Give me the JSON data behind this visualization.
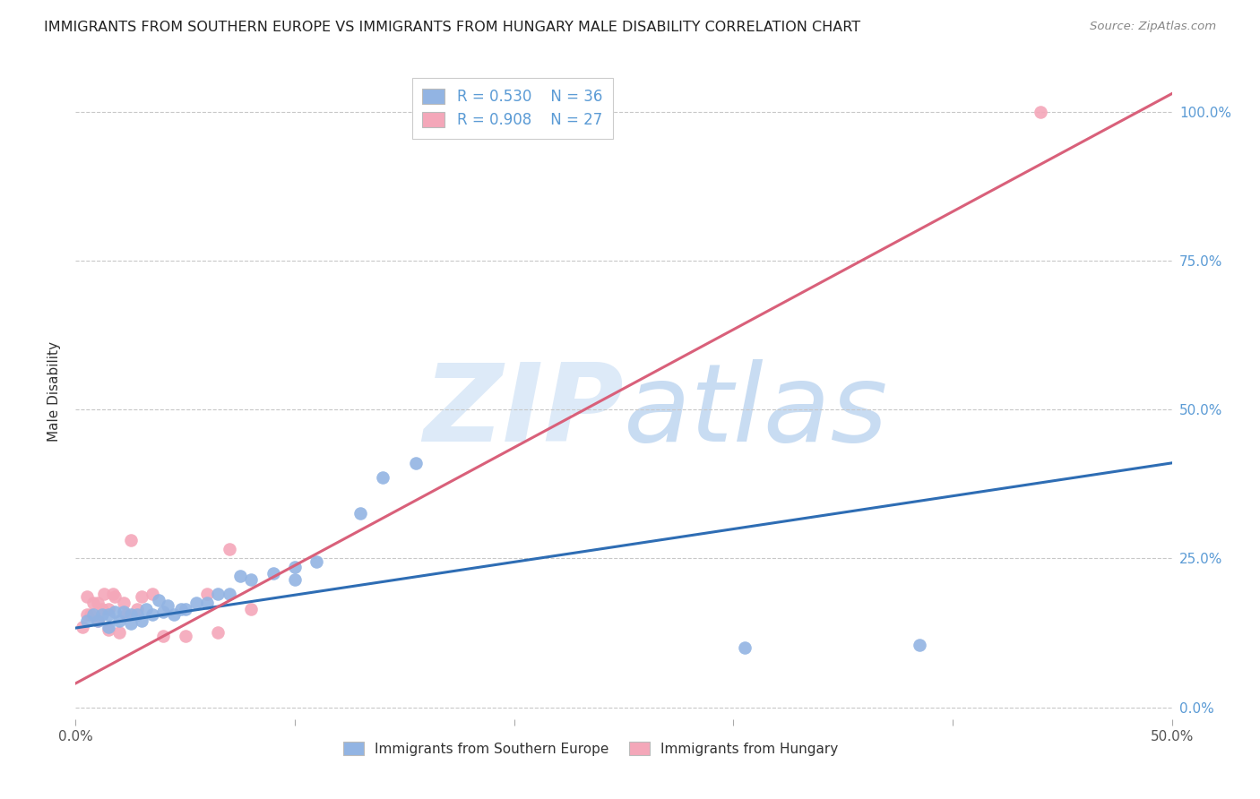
{
  "title": "IMMIGRANTS FROM SOUTHERN EUROPE VS IMMIGRANTS FROM HUNGARY MALE DISABILITY CORRELATION CHART",
  "source": "Source: ZipAtlas.com",
  "ylabel": "Male Disability",
  "xlim": [
    0.0,
    0.5
  ],
  "ylim": [
    -0.02,
    1.08
  ],
  "plot_ylim": [
    0.0,
    1.08
  ],
  "x_ticks": [
    0.0,
    0.1,
    0.2,
    0.3,
    0.4,
    0.5
  ],
  "y_ticks": [
    0.0,
    0.25,
    0.5,
    0.75,
    1.0
  ],
  "y_tick_labels_right": [
    "0.0%",
    "25.0%",
    "50.0%",
    "75.0%",
    "100.0%"
  ],
  "x_tick_labels": [
    "0.0%",
    "",
    "",
    "",
    "",
    "50.0%"
  ],
  "blue_R": 0.53,
  "blue_N": 36,
  "pink_R": 0.908,
  "pink_N": 27,
  "blue_color": "#92B4E3",
  "pink_color": "#F4A7B9",
  "blue_line_color": "#2E6DB4",
  "pink_line_color": "#D9607A",
  "watermark_zip": "ZIP",
  "watermark_atlas": "atlas",
  "watermark_color": "#DDEAF8",
  "legend_label_blue": "Immigrants from Southern Europe",
  "legend_label_pink": "Immigrants from Hungary",
  "blue_scatter_x": [
    0.005,
    0.008,
    0.01,
    0.012,
    0.015,
    0.015,
    0.018,
    0.02,
    0.022,
    0.025,
    0.025,
    0.028,
    0.03,
    0.032,
    0.035,
    0.038,
    0.04,
    0.042,
    0.045,
    0.048,
    0.05,
    0.055,
    0.06,
    0.065,
    0.07,
    0.075,
    0.08,
    0.09,
    0.1,
    0.1,
    0.11,
    0.13,
    0.14,
    0.155,
    0.305,
    0.385
  ],
  "blue_scatter_y": [
    0.145,
    0.155,
    0.145,
    0.155,
    0.135,
    0.155,
    0.16,
    0.145,
    0.16,
    0.14,
    0.155,
    0.155,
    0.145,
    0.165,
    0.155,
    0.18,
    0.16,
    0.17,
    0.155,
    0.165,
    0.165,
    0.175,
    0.175,
    0.19,
    0.19,
    0.22,
    0.215,
    0.225,
    0.235,
    0.215,
    0.245,
    0.325,
    0.385,
    0.41,
    0.1,
    0.105
  ],
  "pink_scatter_x": [
    0.003,
    0.005,
    0.005,
    0.007,
    0.008,
    0.01,
    0.01,
    0.012,
    0.013,
    0.015,
    0.015,
    0.017,
    0.018,
    0.02,
    0.022,
    0.023,
    0.025,
    0.028,
    0.03,
    0.035,
    0.04,
    0.05,
    0.06,
    0.065,
    0.07,
    0.08,
    0.44
  ],
  "pink_scatter_y": [
    0.135,
    0.155,
    0.185,
    0.155,
    0.175,
    0.145,
    0.175,
    0.165,
    0.19,
    0.13,
    0.165,
    0.19,
    0.185,
    0.125,
    0.175,
    0.155,
    0.28,
    0.165,
    0.185,
    0.19,
    0.12,
    0.12,
    0.19,
    0.125,
    0.265,
    0.165,
    1.0
  ],
  "blue_line_x": [
    0.0,
    0.5
  ],
  "blue_line_y": [
    0.133,
    0.41
  ],
  "pink_line_x": [
    0.0,
    0.5
  ],
  "pink_line_y": [
    0.04,
    1.03
  ]
}
